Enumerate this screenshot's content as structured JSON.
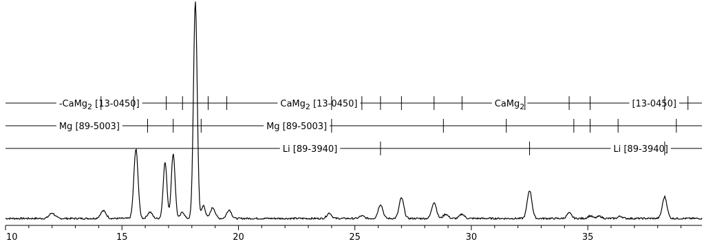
{
  "chart_data": {
    "type": "line",
    "title": "",
    "xlabel": "",
    "ylabel": "",
    "xlim": [
      10,
      39.9
    ],
    "ylim": [
      0,
      1
    ],
    "grid": false,
    "x_ticks": [
      10,
      15,
      20,
      25,
      30,
      35
    ],
    "x_tick_labels": [
      "10",
      "15",
      "20",
      "25",
      "30",
      "35"
    ],
    "series": [
      {
        "color": "#000000",
        "baseline": 0.032,
        "noise": 0.004,
        "peaks": [
          {
            "x": 12.0,
            "y": 0.025,
            "w": 0.12
          },
          {
            "x": 14.2,
            "y": 0.035,
            "w": 0.12
          },
          {
            "x": 15.6,
            "y": 0.32,
            "w": 0.09
          },
          {
            "x": 16.2,
            "y": 0.03,
            "w": 0.1
          },
          {
            "x": 16.85,
            "y": 0.26,
            "w": 0.08
          },
          {
            "x": 17.2,
            "y": 0.3,
            "w": 0.08
          },
          {
            "x": 17.6,
            "y": 0.03,
            "w": 0.08
          },
          {
            "x": 18.15,
            "y": 1.0,
            "w": 0.08
          },
          {
            "x": 18.5,
            "y": 0.06,
            "w": 0.08
          },
          {
            "x": 18.9,
            "y": 0.05,
            "w": 0.1
          },
          {
            "x": 19.6,
            "y": 0.04,
            "w": 0.1
          },
          {
            "x": 23.9,
            "y": 0.025,
            "w": 0.1
          },
          {
            "x": 25.3,
            "y": 0.012,
            "w": 0.1
          },
          {
            "x": 26.1,
            "y": 0.065,
            "w": 0.1
          },
          {
            "x": 27.0,
            "y": 0.095,
            "w": 0.1
          },
          {
            "x": 28.4,
            "y": 0.075,
            "w": 0.1
          },
          {
            "x": 28.9,
            "y": 0.02,
            "w": 0.1
          },
          {
            "x": 29.6,
            "y": 0.02,
            "w": 0.1
          },
          {
            "x": 32.5,
            "y": 0.13,
            "w": 0.1
          },
          {
            "x": 34.2,
            "y": 0.025,
            "w": 0.1
          },
          {
            "x": 35.1,
            "y": 0.012,
            "w": 0.1
          },
          {
            "x": 35.5,
            "y": 0.01,
            "w": 0.1
          },
          {
            "x": 36.4,
            "y": 0.01,
            "w": 0.1
          },
          {
            "x": 38.3,
            "y": 0.1,
            "w": 0.1
          }
        ]
      }
    ],
    "reference_patterns": [
      {
        "labels": [
          {
            "text": "-CaMg",
            "sub": "2",
            "after": " [13-0450]",
            "x": 12.3
          },
          {
            "text": "CaMg",
            "sub": "2",
            "after": " [13-0450]",
            "x": 21.8
          },
          {
            "text": "CaMg",
            "sub": "2",
            "after": "",
            "x": 31.0
          },
          {
            "text": "[13-0450]",
            "sub": "",
            "after": "",
            "x": 36.9
          }
        ],
        "ticks": [
          14.1,
          15.5,
          16.9,
          17.6,
          18.7,
          19.5,
          24.0,
          25.3,
          26.1,
          27.0,
          28.4,
          29.6,
          32.3,
          34.2,
          35.1,
          38.3,
          39.3
        ]
      },
      {
        "labels": [
          {
            "text": "Mg  [89-5003]",
            "sub": "",
            "after": "",
            "x": 12.3
          },
          {
            "text": "Mg  [89-5003]",
            "sub": "",
            "after": "",
            "x": 21.2
          }
        ],
        "ticks": [
          16.1,
          17.2,
          18.4,
          24.0,
          28.8,
          31.5,
          34.4,
          35.1,
          36.3,
          38.8
        ]
      },
      {
        "labels": [
          {
            "text": "Li  [89-3940]",
            "sub": "",
            "after": "",
            "x": 21.9
          },
          {
            "text": "Li  [89-3940]",
            "sub": "",
            "after": "",
            "x": 36.1
          }
        ],
        "ticks": [
          26.1,
          32.5,
          38.3
        ]
      }
    ]
  }
}
